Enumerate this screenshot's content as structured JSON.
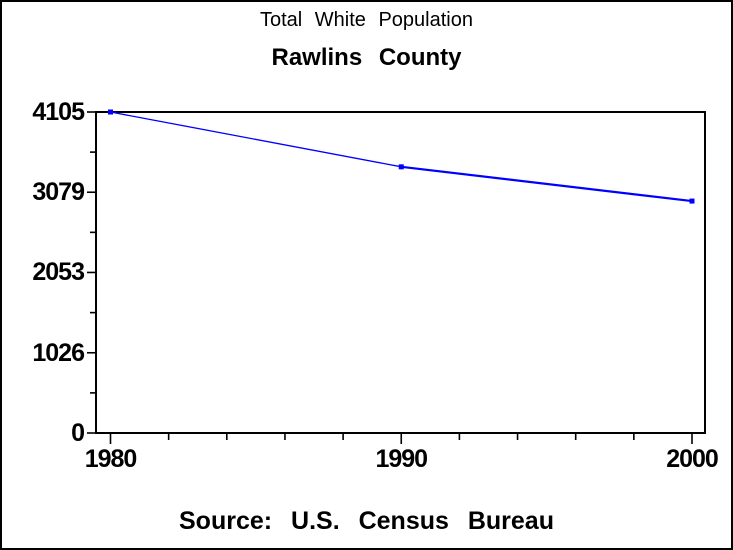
{
  "chart_data": {
    "type": "line",
    "title": "Total White Population",
    "subtitle": "Rawlins County",
    "source_note": "Source: U.S. Census Bureau",
    "x": [
      1980,
      1990,
      2000
    ],
    "series": [
      {
        "name": "Total White Population",
        "values": [
          4105,
          3404,
          2966
        ]
      }
    ],
    "xlim": [
      1980,
      2000
    ],
    "ylim": [
      0,
      4105
    ],
    "y_tick_labels": [
      "0",
      "1026",
      "2053",
      "3079",
      "4105"
    ],
    "y_tick_values": [
      0,
      1026,
      2053,
      3079,
      4105
    ],
    "x_tick_labels": [
      "1980",
      "1990",
      "2000"
    ],
    "x_tick_values": [
      1980,
      1990,
      2000
    ],
    "x_minor_step_years": 2,
    "y_minor_divisions": 2,
    "grid": false,
    "legend": "none",
    "line_color": "#0000ff",
    "marker": "square",
    "axis_color": "#000000",
    "background_color": "#ffffff"
  }
}
